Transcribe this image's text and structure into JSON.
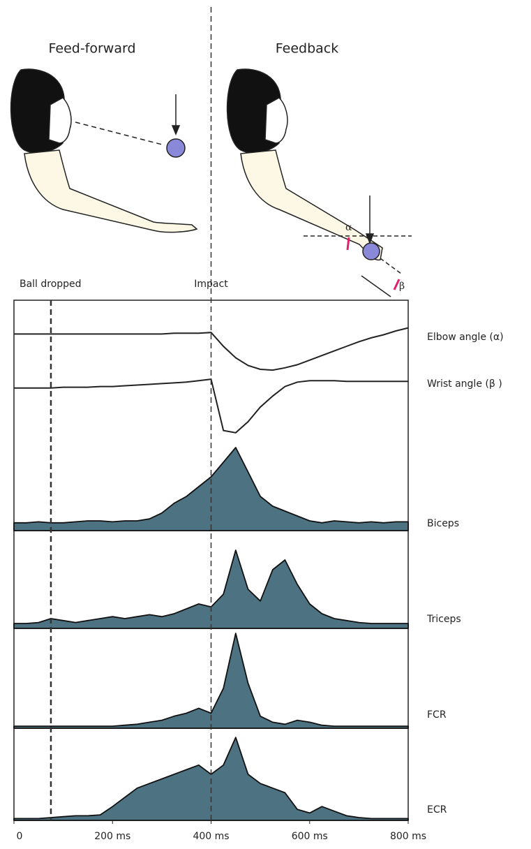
{
  "figure": {
    "left_title": "Feed-forward",
    "right_title": "Feedback",
    "alpha_label": "α",
    "beta_label": "β"
  },
  "chart_data": {
    "type": "line",
    "x": [
      0,
      25,
      50,
      75,
      100,
      125,
      150,
      175,
      200,
      225,
      250,
      275,
      300,
      325,
      350,
      375,
      400,
      425,
      450,
      475,
      500,
      525,
      550,
      575,
      600,
      625,
      650,
      675,
      700,
      725,
      750,
      775,
      800
    ],
    "xlim": [
      0,
      800
    ],
    "xticks": [
      0,
      {
        "value": 200,
        "label": "200 ms"
      },
      {
        "value": 400,
        "label": "400 ms"
      },
      {
        "value": 600,
        "label": "600 ms"
      },
      {
        "value": 800,
        "label": "800 ms"
      }
    ],
    "ylim": [
      0,
      100
    ],
    "annotations": [
      {
        "text": "Ball dropped",
        "x": 75
      },
      {
        "text": "Impact",
        "x": 400
      }
    ],
    "series": [
      {
        "name": "Elbow angle (α)",
        "color": "#222222",
        "filled": false,
        "values": [
          56,
          56,
          56,
          56,
          56,
          56,
          56,
          56,
          56,
          56,
          56,
          56,
          56,
          57,
          57,
          57,
          58,
          40,
          25,
          15,
          10,
          9,
          12,
          16,
          22,
          28,
          34,
          40,
          46,
          51,
          55,
          60,
          64
        ]
      },
      {
        "name": "Wrist angle (β )",
        "color": "#222222",
        "filled": false,
        "values": [
          66,
          66,
          66,
          66,
          67,
          67,
          67,
          68,
          68,
          69,
          70,
          71,
          72,
          73,
          74,
          76,
          78,
          8,
          5,
          20,
          40,
          55,
          68,
          74,
          76,
          76,
          76,
          75,
          75,
          75,
          75,
          75,
          75
        ]
      },
      {
        "name": "Biceps",
        "color": "#4d7282",
        "filled": true,
        "values": [
          8,
          8,
          9,
          8,
          8,
          9,
          10,
          10,
          9,
          10,
          10,
          12,
          18,
          28,
          35,
          45,
          55,
          70,
          85,
          60,
          35,
          25,
          20,
          15,
          10,
          8,
          10,
          9,
          8,
          9,
          8,
          9,
          9
        ]
      },
      {
        "name": "Triceps",
        "color": "#4d7282",
        "filled": true,
        "values": [
          5,
          5,
          6,
          10,
          8,
          6,
          8,
          10,
          12,
          10,
          12,
          14,
          12,
          15,
          20,
          25,
          22,
          35,
          80,
          40,
          28,
          60,
          70,
          45,
          25,
          15,
          10,
          8,
          6,
          5,
          5,
          5,
          5
        ]
      },
      {
        "name": "FCR",
        "color": "#4d7282",
        "filled": true,
        "values": [
          2,
          2,
          2,
          2,
          2,
          2,
          2,
          2,
          2,
          3,
          4,
          6,
          8,
          12,
          15,
          20,
          15,
          40,
          95,
          45,
          12,
          6,
          4,
          8,
          6,
          3,
          2,
          2,
          2,
          2,
          2,
          2,
          2
        ]
      },
      {
        "name": "ECR",
        "color": "#4d7282",
        "filled": true,
        "values": [
          2,
          2,
          2,
          3,
          4,
          5,
          5,
          6,
          15,
          25,
          35,
          40,
          45,
          50,
          55,
          60,
          50,
          60,
          90,
          50,
          40,
          35,
          30,
          12,
          8,
          15,
          10,
          5,
          3,
          2,
          2,
          2,
          2
        ]
      }
    ]
  }
}
